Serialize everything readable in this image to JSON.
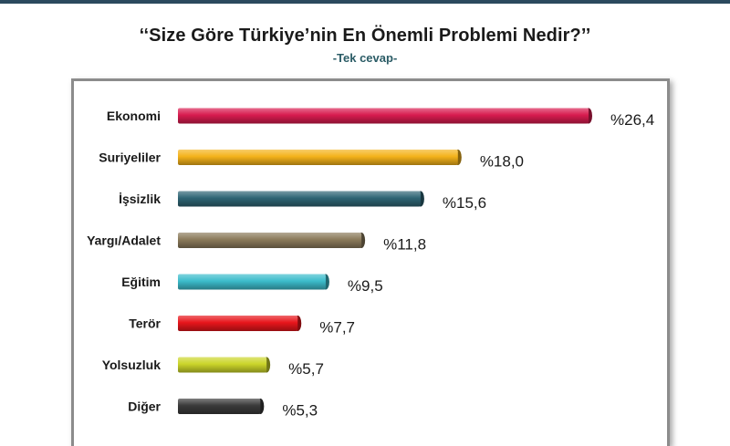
{
  "page": {
    "title": "‘‘Size Göre Türkiye’nin En Önemli Problemi Nedir?’’",
    "subtitle": "-Tek cevap-"
  },
  "chart_data": {
    "type": "bar",
    "orientation": "horizontal",
    "title": "‘‘Size Göre Türkiye’nin En Önemli Problemi Nedir?’’",
    "subtitle": "-Tek cevap-",
    "categories": [
      "Ekonomi",
      "Suriyeliler",
      "İşsizlik",
      "Yargı/Adalet",
      "Eğitim",
      "Terör",
      "Yolsuzluk",
      "Diğer"
    ],
    "values": [
      26.4,
      18.0,
      15.6,
      11.8,
      9.5,
      7.7,
      5.7,
      5.3
    ],
    "value_labels": [
      "%26,4",
      "%18,0",
      "%15,6",
      "%11,8",
      "%9,5",
      "%7,7",
      "%5,7",
      "%5,3"
    ],
    "colors": [
      "#d81b4f",
      "#f4b21a",
      "#2e6474",
      "#8b7a5a",
      "#3cbccb",
      "#e8151b",
      "#cbd52a",
      "#3a3a3a"
    ],
    "xlim": [
      0,
      26.4
    ],
    "grid": false,
    "legend": "none"
  }
}
